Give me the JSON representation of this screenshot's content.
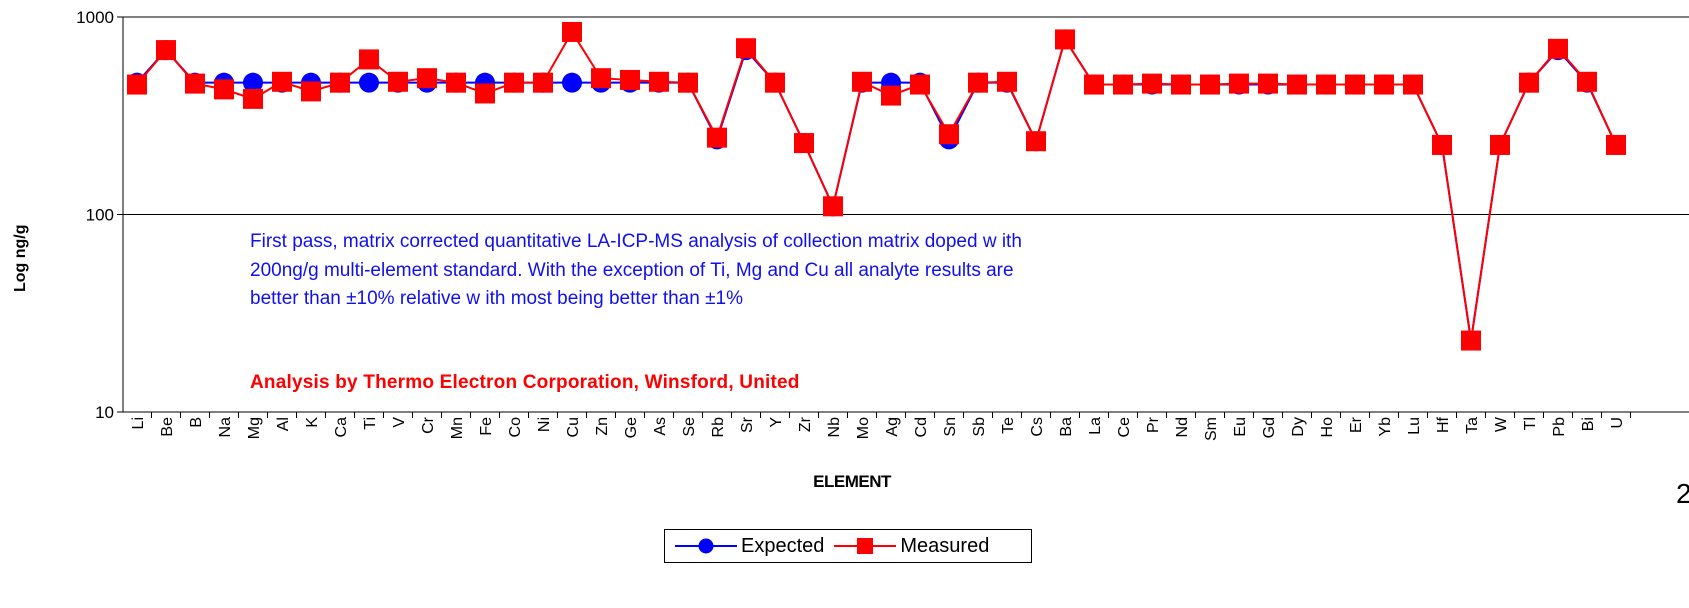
{
  "chart_data": {
    "type": "line",
    "ylabel": "Log ng/g",
    "xlabel": "ELEMENT",
    "y_scale": "log",
    "ylim": [
      10,
      1000
    ],
    "y_ticks": [
      "10",
      "100",
      "1000"
    ],
    "grid": true,
    "legend_position": "bottom",
    "categories": [
      "Li",
      "Be",
      "B",
      "Na",
      "Mg",
      "Al",
      "K",
      "Ca",
      "Ti",
      "V",
      "Cr",
      "Mn",
      "Fe",
      "Co",
      "Ni",
      "Cu",
      "Zn",
      "Ge",
      "As",
      "Se",
      "Rb",
      "Sr",
      "Y",
      "Zr",
      "Nb",
      "Mo",
      "Ag",
      "Cd",
      "Sn",
      "Sb",
      "Te",
      "Cs",
      "Ba",
      "La",
      "Ce",
      "Pr",
      "Nd",
      "Sm",
      "Eu",
      "Gd",
      "Dy",
      "Ho",
      "Er",
      "Yb",
      "Lu",
      "Hf",
      "Ta",
      "W",
      "Tl",
      "Pb",
      "Bi",
      "U"
    ],
    "series": [
      {
        "name": "Expected",
        "color": "#0000ff",
        "marker": "circle",
        "values": [
          465,
          680,
          465,
          465,
          465,
          465,
          465,
          465,
          465,
          465,
          465,
          465,
          465,
          465,
          465,
          465,
          465,
          465,
          465,
          465,
          240,
          680,
          465,
          230,
          110,
          465,
          465,
          465,
          240,
          465,
          465,
          235,
          770,
          455,
          455,
          455,
          455,
          455,
          455,
          455,
          455,
          455,
          455,
          455,
          455,
          225,
          23,
          225,
          465,
          680,
          465,
          225
        ]
      },
      {
        "name": "Measured",
        "color": "#ff0000",
        "marker": "square",
        "values": [
          455,
          680,
          460,
          430,
          385,
          470,
          420,
          465,
          610,
          470,
          490,
          465,
          410,
          465,
          465,
          840,
          490,
          480,
          470,
          465,
          245,
          695,
          465,
          230,
          110,
          470,
          400,
          455,
          255,
          465,
          470,
          235,
          770,
          455,
          455,
          460,
          455,
          455,
          460,
          460,
          455,
          455,
          455,
          455,
          455,
          225,
          23,
          225,
          465,
          690,
          470,
          225
        ]
      }
    ],
    "annotations": [
      "First pass, matrix corrected quantitative LA-ICP-MS analysis of collection matrix  doped w ith 200ng/g multi-element standard.  With the exception of Ti, Mg and Cu all analyte results are better than ±10% relative w ith most being better than ±1%",
      "Analysis by Thermo Electron Corporation, Winsford, United"
    ]
  },
  "page_number": "2"
}
